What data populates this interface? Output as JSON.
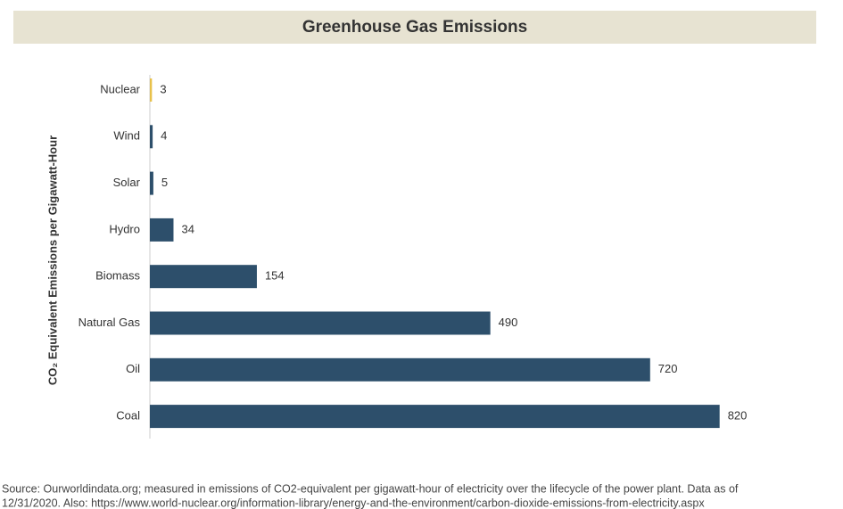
{
  "chart_data": {
    "type": "bar",
    "orientation": "horizontal",
    "title": "Greenhouse Gas Emissions",
    "y_label": "CO₂ Equivalent Emissions per Gigawatt-Hour",
    "categories": [
      "Nuclear",
      "Wind",
      "Solar",
      "Hydro",
      "Biomass",
      "Natural Gas",
      "Oil",
      "Coal"
    ],
    "values": [
      3,
      4,
      5,
      34,
      154,
      490,
      720,
      820
    ],
    "colors": [
      "#e8c14a",
      "#2d4f6b",
      "#2d4f6b",
      "#2d4f6b",
      "#2d4f6b",
      "#2d4f6b",
      "#2d4f6b",
      "#2d4f6b"
    ],
    "xlim": [
      0,
      900
    ],
    "source": [
      "Source: Ourworldindata.org; measured in emissions of CO2-equivalent per gigawatt-hour of electricity over the lifecycle of the power plant. Data as of",
      "12/31/2020. Also: https://www.world-nuclear.org/information-library/energy-and-the-environment/carbon-dioxide-emissions-from-electricity.aspx"
    ]
  }
}
